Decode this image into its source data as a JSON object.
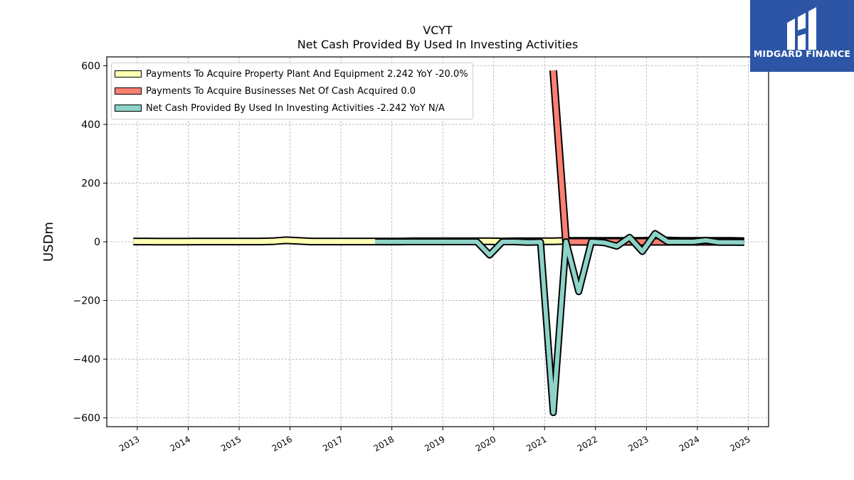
{
  "logo": {
    "text": "MIDGARD FINANCE",
    "icon": "midgard-logo-icon",
    "bg_color": "#2d55a6"
  },
  "chart_data": {
    "type": "line",
    "title": "VCYT",
    "subtitle": "Net Cash Provided By Used In Investing Activities",
    "xlabel": "",
    "ylabel": "USDm",
    "xlim": [
      2012.4,
      2025.4
    ],
    "ylim": [
      -630,
      630
    ],
    "xticks": [
      "2013",
      "2014",
      "2015",
      "2016",
      "2017",
      "2018",
      "2019",
      "2020",
      "2021",
      "2022",
      "2023",
      "2024",
      "2025"
    ],
    "yticks": [
      -600,
      -400,
      -200,
      0,
      200,
      400,
      600
    ],
    "ytick_labels": [
      "−600",
      "−400",
      "−200",
      "0",
      "200",
      "400",
      "600"
    ],
    "grid": true,
    "legend_position": "top-left",
    "series": [
      {
        "name": "Payments To Acquire Property Plant And Equipment",
        "legend_label": "Payments To Acquire Property Plant And Equipment  2.242 YoY -20.0%",
        "color": "#ffffb3",
        "x": [
          2012.92,
          2013.17,
          2013.42,
          2013.67,
          2013.92,
          2014.17,
          2014.42,
          2014.67,
          2014.92,
          2015.17,
          2015.42,
          2015.67,
          2015.92,
          2016.17,
          2016.42,
          2016.67,
          2016.92,
          2017.17,
          2017.42,
          2017.67,
          2017.92,
          2018.17,
          2018.42,
          2018.67,
          2018.92,
          2019.17,
          2019.42,
          2019.67,
          2019.92,
          2020.17,
          2020.42,
          2020.67,
          2020.92,
          2021.17,
          2021.42,
          2021.67,
          2021.92,
          2022.17,
          2022.42,
          2022.67,
          2022.92,
          2023.17,
          2023.42,
          2023.67,
          2023.92,
          2024.17,
          2024.42,
          2024.67,
          2024.92
        ],
        "y": [
          1,
          1,
          0.5,
          0.5,
          0.5,
          1,
          1,
          1,
          1,
          1,
          1,
          2,
          5,
          3,
          1,
          1,
          1,
          1,
          1,
          1,
          1,
          1,
          2,
          2,
          2,
          2,
          2,
          2,
          2,
          1,
          2,
          2,
          2,
          2,
          3,
          3,
          3,
          3,
          3,
          3,
          3,
          4,
          4,
          3,
          3,
          3,
          3,
          3,
          2.242
        ]
      },
      {
        "name": "Payments To Acquire Businesses Net Of Cash Acquired",
        "legend_label": "Payments To Acquire Businesses Net Of Cash Acquired  0.0",
        "color": "#fb8072",
        "x": [
          2021.17,
          2021.42,
          2021.67,
          2021.92,
          2022.17,
          2022.42,
          2022.67,
          2022.92,
          2023.17,
          2023.42,
          2023.67,
          2023.92,
          2024.17,
          2024.42,
          2024.67,
          2024.92
        ],
        "y": [
          584,
          0,
          0,
          0,
          0,
          0,
          0,
          0,
          0,
          0,
          0,
          0,
          0,
          0,
          0,
          0
        ]
      },
      {
        "name": "Net Cash Provided By Used In Investing Activities",
        "legend_label": "Net Cash Provided By Used In Investing Activities  -2.242 YoY N/A",
        "color": "#8dd3c7",
        "x": [
          2017.67,
          2017.92,
          2018.17,
          2018.42,
          2018.67,
          2018.92,
          2019.17,
          2019.42,
          2019.67,
          2019.92,
          2020.17,
          2020.42,
          2020.67,
          2020.92,
          2021.17,
          2021.42,
          2021.67,
          2021.92,
          2022.17,
          2022.42,
          2022.67,
          2022.92,
          2023.17,
          2023.42,
          2023.67,
          2023.92,
          2024.17,
          2024.42,
          2024.67,
          2024.92
        ],
        "y": [
          0,
          0,
          0,
          0,
          0,
          0,
          0,
          0,
          0,
          -45,
          0,
          0,
          -2,
          -1,
          -582,
          0,
          -170,
          0,
          -3,
          -15,
          15,
          -33,
          28,
          0,
          0,
          0,
          5,
          -2,
          -2,
          -2.242
        ]
      }
    ]
  }
}
